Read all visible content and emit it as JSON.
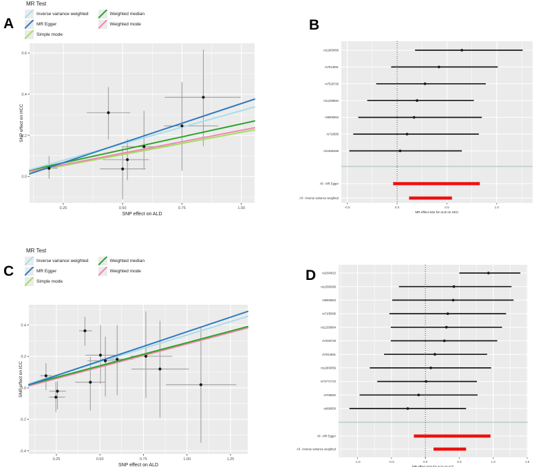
{
  "panels": {
    "a": "A",
    "b": "B",
    "c": "C",
    "d": "D"
  },
  "legend": {
    "title": "MR Test",
    "items": [
      {
        "label": "Inverse variance weighted",
        "color_key": "inverse_variance_weighted"
      },
      {
        "label": "MR Egger",
        "color_key": "mr_egger"
      },
      {
        "label": "Simple mode",
        "color_key": "simple_mode"
      },
      {
        "label": "Weighted median",
        "color_key": "weighted_median"
      },
      {
        "label": "Weighted mode",
        "color_key": "weighted_mode"
      }
    ]
  },
  "colors": {
    "inverse_variance_weighted": "#a9dde9",
    "mr_egger": "#3079c0",
    "simple_mode": "#9fe05e",
    "weighted_median": "#2aa42a",
    "weighted_mode": "#f287ae",
    "plot_background": "#ebebeb",
    "grid_line": "#ffffff",
    "error_bar": "#9f9f9f",
    "point": "#1a1a1a",
    "summary_bar": "#ed1111",
    "separator": "#a3b8b8"
  },
  "chart_data": [
    {
      "id": "A",
      "type": "scatter",
      "xlabel": "SNP effect on ALD",
      "ylabel": "SNP effect on HCC",
      "xlim": [
        0.108,
        1.056
      ],
      "ylim": [
        -0.128,
        0.647
      ],
      "xticks": [
        0.25,
        0.5,
        0.75,
        1.0
      ],
      "xtick_labels": [
        "0.25",
        "0.50",
        "0.75",
        "1.00"
      ],
      "yticks": [
        0.0,
        0.2,
        0.4,
        0.6
      ],
      "ytick_labels": [
        "0.0",
        "0.2",
        "0.4",
        "0.6"
      ],
      "points": [
        {
          "x": 0.19,
          "y": 0.04,
          "xlo": 0.147,
          "xhi": 0.225,
          "ylo": -0.01,
          "yhi": 0.1
        },
        {
          "x": 0.44,
          "y": 0.31,
          "xlo": 0.349,
          "xhi": 0.532,
          "ylo": 0.18,
          "yhi": 0.435
        },
        {
          "x": 0.5,
          "y": 0.037,
          "xlo": 0.404,
          "xhi": 0.597,
          "ylo": -0.11,
          "yhi": 0.142
        },
        {
          "x": 0.52,
          "y": 0.082,
          "xlo": 0.417,
          "xhi": 0.611,
          "ylo": -0.018,
          "yhi": 0.181
        },
        {
          "x": 0.59,
          "y": 0.145,
          "xlo": 0.496,
          "xhi": 0.69,
          "ylo": 0.035,
          "yhi": 0.319
        },
        {
          "x": 0.75,
          "y": 0.246,
          "xlo": 0.674,
          "xhi": 0.902,
          "ylo": 0.029,
          "yhi": 0.459
        },
        {
          "x": 0.84,
          "y": 0.385,
          "xlo": 0.677,
          "xhi": 0.997,
          "ylo": 0.147,
          "yhi": 0.617
        }
      ],
      "lines": [
        {
          "method": "simple_mode",
          "x": [
            0.108,
            1.056
          ],
          "y": [
            0.022,
            0.227
          ]
        },
        {
          "method": "weighted_mode",
          "x": [
            0.108,
            1.056
          ],
          "y": [
            0.026,
            0.237
          ]
        },
        {
          "method": "weighted_median",
          "x": [
            0.108,
            1.056
          ],
          "y": [
            0.031,
            0.27
          ]
        },
        {
          "method": "inverse_variance_weighted",
          "x": [
            0.108,
            1.056
          ],
          "y": [
            0.033,
            0.338
          ]
        },
        {
          "method": "mr_egger",
          "x": [
            0.108,
            1.056
          ],
          "y": [
            0.013,
            0.376
          ]
        }
      ]
    },
    {
      "id": "B",
      "type": "forest",
      "xlabel": "MR effect size for ALD on HCC",
      "xlim": [
        -0.56,
        1.36
      ],
      "xticks": [
        -0.5,
        0.0,
        0.5,
        1.0
      ],
      "xtick_labels": [
        "-0.5",
        "0.0",
        "0.5",
        "1.0"
      ],
      "zero_line": 0,
      "rows": [
        {
          "label": "rs11800056",
          "est": 0.65,
          "lo": 0.18,
          "hi": 1.26
        },
        {
          "label": "rs7913691",
          "est": 0.42,
          "lo": -0.06,
          "hi": 1.01
        },
        {
          "label": "rs7529728",
          "est": 0.28,
          "lo": -0.21,
          "hi": 0.89
        },
        {
          "label": "rs11259694",
          "est": 0.2,
          "lo": -0.3,
          "hi": 0.77
        },
        {
          "label": "rs5905653",
          "est": 0.17,
          "lo": -0.39,
          "hi": 0.85
        },
        {
          "label": "rs718589",
          "est": 0.1,
          "lo": -0.44,
          "hi": 0.82
        },
        {
          "label": "rs11595286",
          "est": 0.03,
          "lo": -0.48,
          "hi": 0.65
        }
      ],
      "summaries": [
        {
          "label": "All - MR Egger",
          "lo": -0.04,
          "hi": 0.83
        },
        {
          "label": "All - Inverse variance weighted",
          "lo": 0.12,
          "hi": 0.55
        }
      ]
    },
    {
      "id": "C",
      "type": "scatter",
      "xlabel": "SNP effect on ALD",
      "ylabel": "SNP effect on ICC",
      "xlim": [
        0.092,
        1.349
      ],
      "ylim": [
        -0.42,
        0.529
      ],
      "xticks": [
        0.25,
        0.5,
        0.75,
        1.0,
        1.25
      ],
      "xtick_labels": [
        "0.25",
        "0.50",
        "0.75",
        "1.00",
        "1.25"
      ],
      "yticks": [
        -0.4,
        -0.2,
        0.0,
        0.2,
        0.4
      ],
      "ytick_labels": [
        "-0.4",
        "-0.2",
        "0.0",
        "0.2",
        "0.4"
      ],
      "points": [
        {
          "x": 0.19,
          "y": 0.077,
          "xlo": 0.157,
          "xhi": 0.226,
          "ylo": -0.014,
          "yhi": 0.157
        },
        {
          "x": 0.256,
          "y": -0.021,
          "xlo": 0.21,
          "xhi": 0.305,
          "ylo": -0.136,
          "yhi": 0.042
        },
        {
          "x": 0.247,
          "y": -0.059,
          "xlo": 0.208,
          "xhi": 0.3,
          "ylo": -0.155,
          "yhi": 0.04
        },
        {
          "x": 0.414,
          "y": 0.363,
          "xlo": 0.379,
          "xhi": 0.454,
          "ylo": 0.268,
          "yhi": 0.452
        },
        {
          "x": 0.445,
          "y": 0.036,
          "xlo": 0.358,
          "xhi": 0.533,
          "ylo": -0.145,
          "yhi": 0.197
        },
        {
          "x": 0.503,
          "y": 0.208,
          "xlo": 0.418,
          "xhi": 0.588,
          "ylo": 0.025,
          "yhi": 0.4
        },
        {
          "x": 0.531,
          "y": 0.172,
          "xlo": 0.428,
          "xhi": 0.634,
          "ylo": -0.054,
          "yhi": 0.326
        },
        {
          "x": 0.599,
          "y": 0.182,
          "xlo": 0.51,
          "xhi": 0.688,
          "ylo": -0.047,
          "yhi": 0.4
        },
        {
          "x": 0.764,
          "y": 0.201,
          "xlo": 0.678,
          "xhi": 0.915,
          "ylo": -0.065,
          "yhi": 0.486
        },
        {
          "x": 0.845,
          "y": 0.12,
          "xlo": 0.682,
          "xhi": 1.011,
          "ylo": -0.19,
          "yhi": 0.426
        },
        {
          "x": 1.08,
          "y": 0.02,
          "xlo": 0.879,
          "xhi": 1.283,
          "ylo": -0.349,
          "yhi": 0.383
        }
      ],
      "lines": [
        {
          "method": "simple_mode",
          "x": [
            0.092,
            1.349
          ],
          "y": [
            0.022,
            0.389
          ]
        },
        {
          "method": "weighted_mode",
          "x": [
            0.092,
            1.349
          ],
          "y": [
            0.013,
            0.381
          ]
        },
        {
          "method": "weighted_median",
          "x": [
            0.092,
            1.349
          ],
          "y": [
            0.02,
            0.39
          ]
        },
        {
          "method": "inverse_variance_weighted",
          "x": [
            0.092,
            1.349
          ],
          "y": [
            0.027,
            0.455
          ]
        },
        {
          "method": "mr_egger",
          "x": [
            0.092,
            1.349
          ],
          "y": [
            0.02,
            0.486
          ]
        }
      ]
    },
    {
      "id": "D",
      "type": "forest",
      "xlabel": "MR effect size for ALD on ICC",
      "xlim": [
        -1.28,
        1.51
      ],
      "xticks": [
        -1.0,
        -0.5,
        0.0,
        0.5,
        1.0,
        1.5
      ],
      "xtick_labels": [
        "-1.0",
        "-0.5",
        "0.0",
        "0.5",
        "1.0",
        "1.5"
      ],
      "zero_line": 0,
      "rows": [
        {
          "label": "rs2294915",
          "est": 0.93,
          "lo": 0.5,
          "hi": 1.4
        },
        {
          "label": "rs11595286",
          "est": 0.42,
          "lo": -0.39,
          "hi": 1.27
        },
        {
          "label": "rs5905653",
          "est": 0.41,
          "lo": -0.49,
          "hi": 1.3
        },
        {
          "label": "rs7105095",
          "est": 0.33,
          "lo": -0.53,
          "hi": 1.19
        },
        {
          "label": "rs11259694",
          "est": 0.31,
          "lo": -0.51,
          "hi": 1.13
        },
        {
          "label": "rs7529728",
          "est": 0.28,
          "lo": -0.51,
          "hi": 1.06
        },
        {
          "label": "rs7913691",
          "est": 0.14,
          "lo": -0.61,
          "hi": 0.91
        },
        {
          "label": "rs11800056",
          "est": 0.08,
          "lo": -0.82,
          "hi": 0.97
        },
        {
          "label": "rs72771724",
          "est": 0.01,
          "lo": -0.71,
          "hi": 0.76
        },
        {
          "label": "rs708082",
          "est": -0.1,
          "lo": -0.97,
          "hi": 0.77
        },
        {
          "label": "rs998500",
          "est": -0.26,
          "lo": -1.12,
          "hi": 0.6
        }
      ],
      "summaries": [
        {
          "label": "All - MR Egger",
          "lo": -0.17,
          "hi": 0.96
        },
        {
          "label": "All - Inverse variance weighted",
          "lo": 0.12,
          "hi": 0.6
        }
      ]
    }
  ]
}
